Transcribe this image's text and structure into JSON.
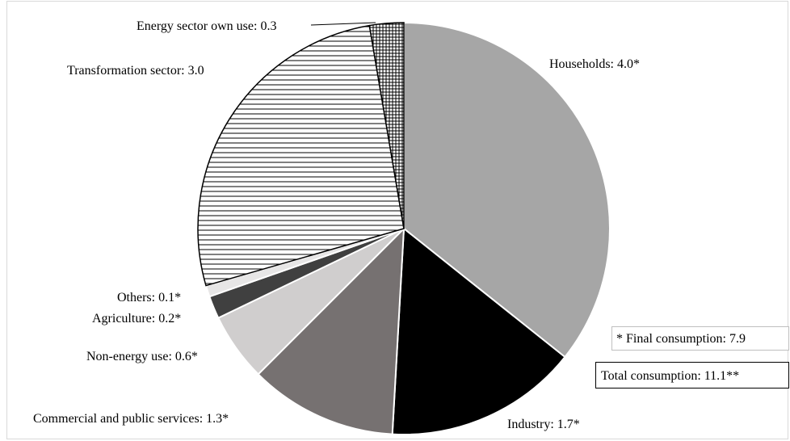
{
  "chart_data": {
    "type": "pie",
    "title": "",
    "slices": [
      {
        "label": "Households",
        "value": 4.0,
        "display": "Households: 4.0*",
        "fill": "#a6a6a6",
        "pattern": "none"
      },
      {
        "label": "Industry",
        "value": 1.7,
        "display": "Industry: 1.7*",
        "fill": "#000000",
        "pattern": "none"
      },
      {
        "label": "Commercial and public services",
        "value": 1.3,
        "display": "Commercial and public services: 1.3*",
        "fill": "#767171",
        "pattern": "none"
      },
      {
        "label": "Non-energy use",
        "value": 0.6,
        "display": "Non-energy use: 0.6*",
        "fill": "#d0cece",
        "pattern": "none"
      },
      {
        "label": "Agriculture",
        "value": 0.2,
        "display": "Agriculture: 0.2*",
        "fill": "#404040",
        "pattern": "none"
      },
      {
        "label": "Others",
        "value": 0.1,
        "display": "Others: 0.1*",
        "fill": "#e7e6e6",
        "pattern": "none"
      },
      {
        "label": "Transformation sector",
        "value": 3.0,
        "display": "Transformation sector: 3.0",
        "fill": "#ffffff",
        "pattern": "horizontal-lines"
      },
      {
        "label": "Energy sector own use",
        "value": 0.3,
        "display": "Energy sector own use: 0.3",
        "fill": "#ffffff",
        "pattern": "grid-lines"
      }
    ],
    "notes": {
      "final_consumption": "* Final consumption: 7.9",
      "total_consumption": "Total consumption: 11.1**"
    }
  }
}
